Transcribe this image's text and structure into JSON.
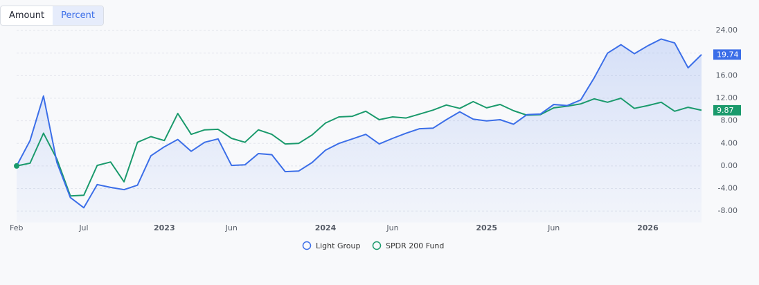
{
  "controls": {
    "options": [
      "Amount",
      "Percent"
    ],
    "selected_index": 1
  },
  "chart_data": {
    "type": "line",
    "x": [
      "2022-02",
      "2022-03",
      "2022-04",
      "2022-05",
      "2022-06",
      "2022-07",
      "2022-08",
      "2022-09",
      "2022-10",
      "2022-11",
      "2022-12",
      "2023-01",
      "2023-02",
      "2023-03",
      "2023-04",
      "2023-05",
      "2023-06",
      "2023-07",
      "2023-08",
      "2023-09",
      "2023-10",
      "2023-11",
      "2023-12",
      "2024-01",
      "2024-02",
      "2024-03",
      "2024-04",
      "2024-05",
      "2024-06",
      "2024-07",
      "2024-08",
      "2024-09",
      "2024-10",
      "2024-11",
      "2024-12",
      "2025-01",
      "2025-02",
      "2025-03",
      "2025-04",
      "2025-05",
      "2025-06",
      "2025-07",
      "2025-08",
      "2025-09",
      "2025-10",
      "2025-11",
      "2025-12",
      "2026-01",
      "2026-02",
      "2026-03",
      "2026-04",
      "2026-05"
    ],
    "series": [
      {
        "name": "Light Group",
        "color": "#3b6ee8",
        "values": [
          0,
          4.5,
          12.4,
          0.6,
          -5.6,
          -7.4,
          -3.3,
          -3.8,
          -4.2,
          -3.4,
          1.8,
          3.4,
          4.7,
          2.6,
          4.2,
          4.8,
          0.1,
          0.2,
          2.2,
          2.0,
          -1.0,
          -0.9,
          0.6,
          2.8,
          4.0,
          4.8,
          5.6,
          3.9,
          4.9,
          5.8,
          6.6,
          6.7,
          8.2,
          9.6,
          8.3,
          8.0,
          8.2,
          7.4,
          9.1,
          9.2,
          10.9,
          10.7,
          11.7,
          15.6,
          20.0,
          21.5,
          19.9,
          21.3,
          22.5,
          21.8,
          17.4,
          19.74
        ]
      },
      {
        "name": "SPDR 200 Fund",
        "color": "#1a9a6c",
        "values": [
          0,
          0.5,
          5.8,
          1.2,
          -5.3,
          -5.2,
          0.1,
          0.7,
          -2.8,
          4.2,
          5.2,
          4.5,
          9.3,
          5.6,
          6.4,
          6.5,
          4.9,
          4.2,
          6.4,
          5.6,
          3.9,
          4.0,
          5.5,
          7.6,
          8.7,
          8.8,
          9.7,
          8.2,
          8.7,
          8.5,
          9.2,
          9.9,
          10.8,
          10.2,
          11.4,
          10.3,
          10.9,
          9.8,
          9.0,
          9.1,
          10.3,
          10.6,
          11.0,
          11.9,
          11.3,
          12.0,
          10.2,
          10.7,
          11.3,
          9.7,
          10.4,
          9.87
        ]
      }
    ],
    "ylim": [
      -10,
      25
    ],
    "yticks": [
      {
        "value": -8,
        "label": "-8.00"
      },
      {
        "value": -4,
        "label": "-4.00"
      },
      {
        "value": 0,
        "label": "0.00"
      },
      {
        "value": 4,
        "label": "4.00"
      },
      {
        "value": 8,
        "label": "8.00"
      },
      {
        "value": 12,
        "label": "12.00"
      },
      {
        "value": 16,
        "label": "16.00"
      },
      {
        "value": 20,
        "label": "20.00"
      },
      {
        "value": 24,
        "label": "24.00"
      }
    ],
    "xticks": [
      {
        "value": "2022-02",
        "label": "Feb"
      },
      {
        "value": "2022-07",
        "label": "Jul"
      },
      {
        "value": "2023-01",
        "label": "2023"
      },
      {
        "value": "2023-06",
        "label": "Jun"
      },
      {
        "value": "2024-01",
        "label": "2024"
      },
      {
        "value": "2024-06",
        "label": "Jun"
      },
      {
        "value": "2025-01",
        "label": "2025"
      },
      {
        "value": "2025-06",
        "label": "Jun"
      },
      {
        "value": "2026-01",
        "label": "2026"
      }
    ],
    "grid": true,
    "area": true
  }
}
